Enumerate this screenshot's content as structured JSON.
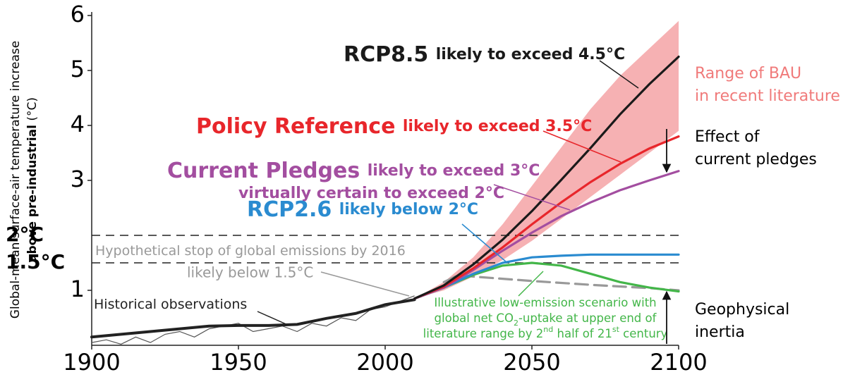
{
  "chart_data": {
    "type": "line",
    "xlim": [
      1900,
      2100
    ],
    "ylim": [
      0,
      6
    ],
    "xticks": [
      1900,
      1950,
      2000,
      2050,
      2100
    ],
    "yticks": [
      1,
      3,
      4,
      5,
      6
    ],
    "y_label": {
      "prefix": "Global-mean surface-air temperature increase",
      "emph": "above pre-industrial",
      "unit": "(°C)"
    },
    "reference_lines": [
      {
        "value": 2,
        "label": "2°C"
      },
      {
        "value": 1.5,
        "label": "1.5°C"
      }
    ],
    "band": {
      "label_lines": [
        "Range of BAU",
        "in recent literature"
      ],
      "color": "#f4a3a6",
      "label_color": "#f07a7a",
      "x": [
        2010,
        2020,
        2030,
        2040,
        2050,
        2060,
        2070,
        2080,
        2090,
        2100
      ],
      "lower": [
        0.85,
        1.0,
        1.25,
        1.55,
        1.9,
        2.3,
        2.7,
        3.1,
        3.5,
        3.9
      ],
      "upper": [
        0.85,
        1.15,
        1.6,
        2.2,
        2.9,
        3.6,
        4.3,
        4.9,
        5.4,
        5.9
      ]
    },
    "series": [
      {
        "name": "Historical observations",
        "color": "#222222",
        "x": [
          1900,
          1910,
          1920,
          1930,
          1940,
          1950,
          1960,
          1970,
          1980,
          1990,
          2000,
          2010
        ],
        "values": [
          0.15,
          0.2,
          0.25,
          0.3,
          0.35,
          0.36,
          0.36,
          0.38,
          0.49,
          0.58,
          0.74,
          0.83
        ],
        "raw_color": "#555555",
        "raw_x": [
          1900,
          1905,
          1910,
          1915,
          1920,
          1925,
          1930,
          1935,
          1940,
          1945,
          1950,
          1955,
          1960,
          1965,
          1970,
          1975,
          1980,
          1985,
          1990,
          1995,
          2000,
          2005,
          2010
        ],
        "raw_values": [
          0.05,
          0.1,
          0.02,
          0.15,
          0.05,
          0.2,
          0.25,
          0.15,
          0.3,
          0.35,
          0.4,
          0.25,
          0.3,
          0.35,
          0.25,
          0.4,
          0.35,
          0.5,
          0.45,
          0.65,
          0.7,
          0.8,
          0.9
        ]
      },
      {
        "name": "RCP8.5",
        "note": "likely to exceed 4.5°C",
        "color": "#1a1a1a",
        "x": [
          2010,
          2020,
          2030,
          2040,
          2050,
          2060,
          2070,
          2080,
          2090,
          2100
        ],
        "values": [
          0.85,
          1.09,
          1.47,
          1.92,
          2.44,
          3.01,
          3.59,
          4.2,
          4.75,
          5.25
        ]
      },
      {
        "name": "Policy Reference",
        "note": "likely to exceed 3.5°C",
        "color": "#e8262b",
        "x": [
          2010,
          2020,
          2030,
          2040,
          2050,
          2060,
          2070,
          2080,
          2090,
          2100
        ],
        "values": [
          0.85,
          1.07,
          1.4,
          1.78,
          2.2,
          2.6,
          2.97,
          3.3,
          3.58,
          3.8
        ]
      },
      {
        "name": "Current Pledges",
        "note": "likely to exceed 3°C",
        "note2": "virtually certain to exceed 2°C",
        "color": "#a34ea0",
        "x": [
          2010,
          2020,
          2030,
          2040,
          2050,
          2060,
          2070,
          2080,
          2090,
          2100
        ],
        "values": [
          0.85,
          1.05,
          1.37,
          1.72,
          2.05,
          2.35,
          2.6,
          2.82,
          3.0,
          3.17
        ]
      },
      {
        "name": "RCP2.6",
        "note": "likely below 2°C",
        "color": "#2a8bd0",
        "x": [
          2010,
          2020,
          2030,
          2040,
          2050,
          2060,
          2070,
          2080,
          2090,
          2100
        ],
        "values": [
          0.85,
          1.05,
          1.3,
          1.5,
          1.6,
          1.63,
          1.65,
          1.65,
          1.65,
          1.65
        ]
      },
      {
        "name": "Hypothetical stop of global emissions by 2016",
        "note": "likely below 1.5°C",
        "color": "#999999",
        "dashed": true,
        "x": [
          2020,
          2025,
          2030,
          2050,
          2070,
          2090,
          2100
        ],
        "values": [
          1.15,
          1.28,
          1.25,
          1.17,
          1.1,
          1.04,
          1.0
        ]
      },
      {
        "name": "Illustrative low-emission scenario",
        "color": "#43b649",
        "x": [
          2010,
          2020,
          2030,
          2040,
          2050,
          2060,
          2070,
          2080,
          2090,
          2100
        ],
        "values": [
          0.85,
          1.05,
          1.28,
          1.45,
          1.5,
          1.45,
          1.3,
          1.15,
          1.05,
          0.98
        ]
      }
    ],
    "green_label": [
      [
        {
          "text": "Illustrative low-emission scenario with"
        }
      ],
      [
        {
          "text": "global net CO"
        },
        {
          "text": "2",
          "shift": "sub"
        },
        {
          "text": "-uptake at upper end of"
        }
      ],
      [
        {
          "text": "literature range by 2"
        },
        {
          "text": "nd",
          "shift": "super"
        },
        {
          "text": " half of 21"
        },
        {
          "text": "st",
          "shift": "super"
        },
        {
          "text": " century"
        }
      ]
    ],
    "annotations": [
      {
        "lines": [
          "Effect of",
          "current pledges"
        ]
      },
      {
        "lines": [
          "Geophysical",
          "inertia"
        ]
      }
    ]
  }
}
